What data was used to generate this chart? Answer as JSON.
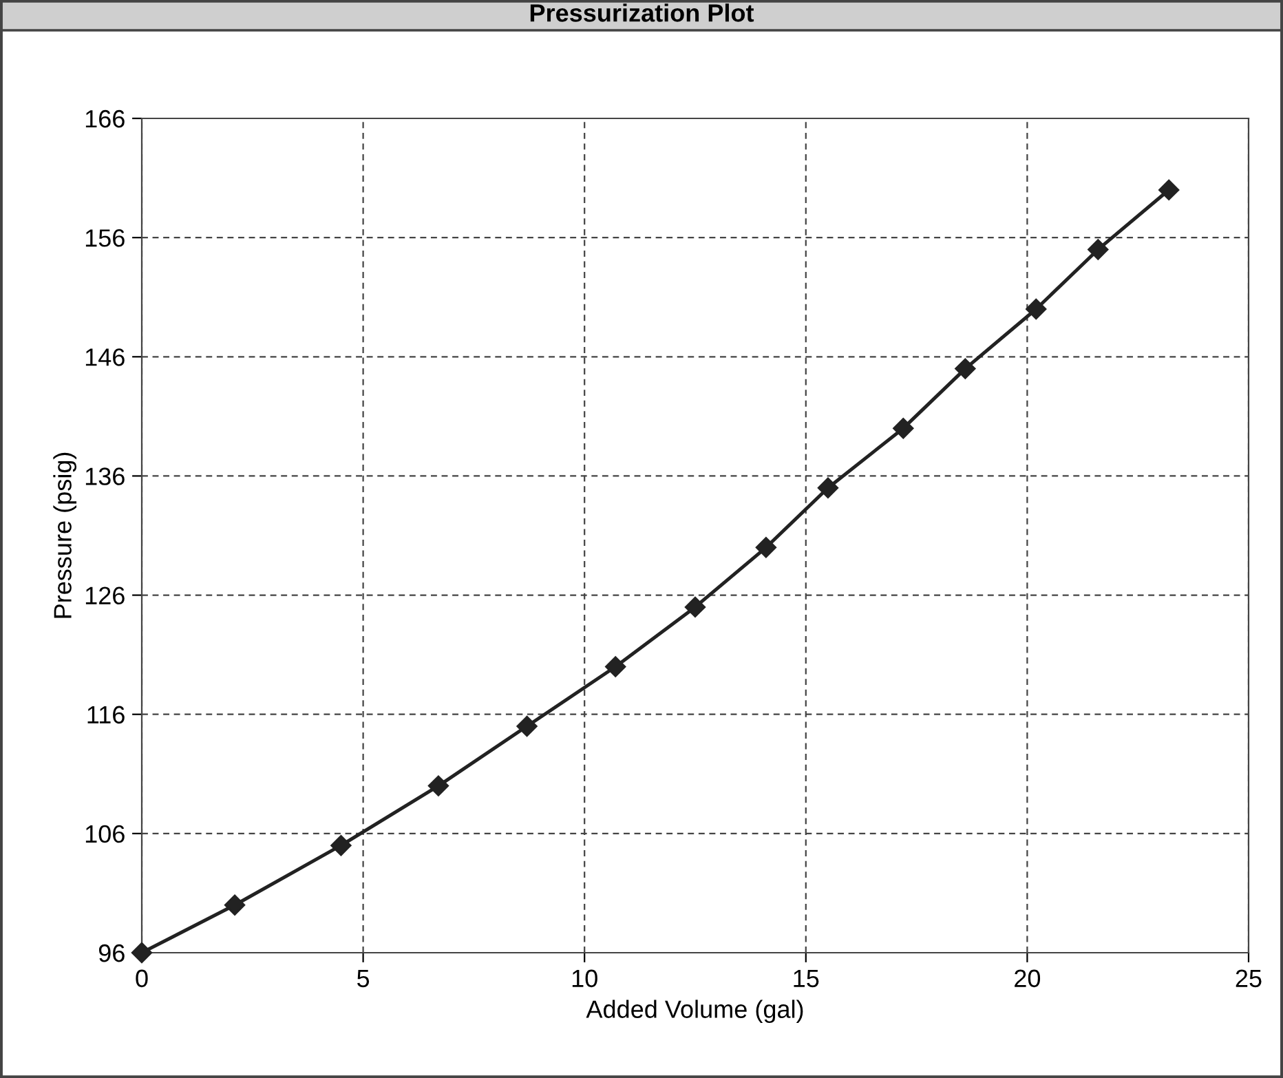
{
  "chart_data": {
    "type": "line",
    "title": "Pressurization Plot",
    "xlabel": "Added Volume (gal)",
    "ylabel": "Pressure (psig)",
    "x": [
      0,
      2.1,
      4.5,
      6.7,
      8.7,
      10.7,
      12.5,
      14.1,
      15.5,
      17.2,
      18.6,
      20.2,
      21.6,
      23.2
    ],
    "series": [
      {
        "color": "#222222",
        "values": [
          96,
          100,
          105,
          110,
          115,
          120,
          125,
          130,
          135,
          140,
          145,
          150,
          155,
          160
        ]
      }
    ],
    "xlim": [
      0,
      25
    ],
    "xticks": [
      0,
      5,
      10,
      15,
      20,
      25
    ],
    "ylim": [
      96,
      166
    ],
    "yticks": [
      96,
      106,
      116,
      126,
      136,
      146,
      156,
      166
    ],
    "grid": true,
    "marker": "diamond",
    "line_style": "solid"
  }
}
